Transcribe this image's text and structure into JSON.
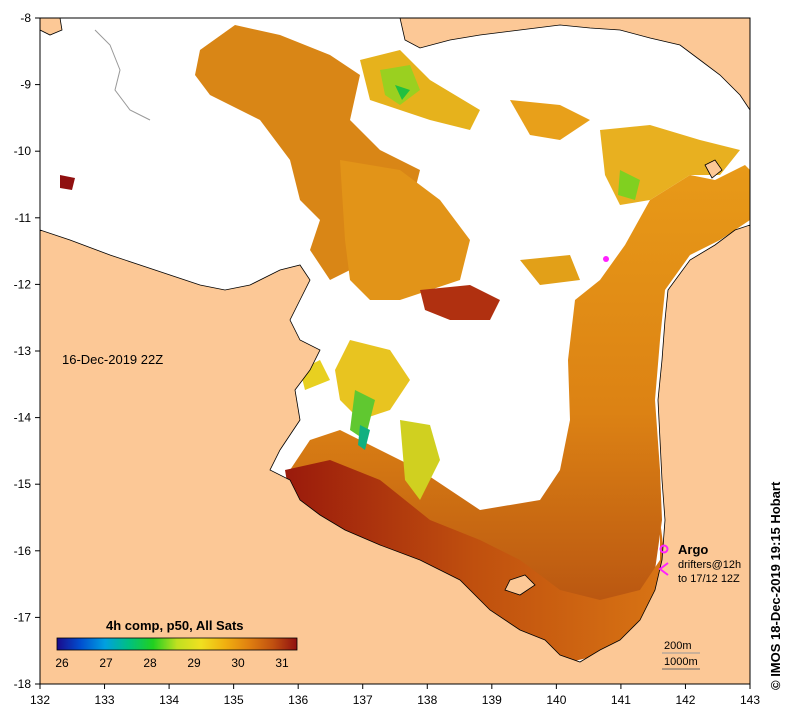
{
  "map": {
    "date_label": "16-Dec-2019 22Z",
    "credit": "© IMOS 18-Dec-2019 19:15 Hobart",
    "x_ticks": [
      "132",
      "133",
      "134",
      "135",
      "136",
      "137",
      "138",
      "139",
      "140",
      "141",
      "142",
      "143"
    ],
    "y_ticks": [
      "-8",
      "-9",
      "-10",
      "-11",
      "-12",
      "-13",
      "-14",
      "-15",
      "-16",
      "-17",
      "-18"
    ],
    "legend": {
      "argo_label": "Argo",
      "drifters_label": "drifters@12h",
      "drifters_range": "to 17/12 12Z",
      "contour_200m": "200m",
      "contour_1000m": "1000m"
    },
    "colorbar": {
      "title": "4h comp, p50, All Sats",
      "ticks": [
        "26",
        "27",
        "28",
        "29",
        "30",
        "31"
      ],
      "colors": [
        "#1a0a8c",
        "#0050d0",
        "#00a0e0",
        "#00c080",
        "#20d020",
        "#c0e020",
        "#f0e020",
        "#f0b010",
        "#e08010",
        "#c05010",
        "#901010"
      ]
    },
    "colors": {
      "land": "#fcc896",
      "nodata": "#ffffff",
      "argo_marker": "#ff20ff"
    }
  }
}
